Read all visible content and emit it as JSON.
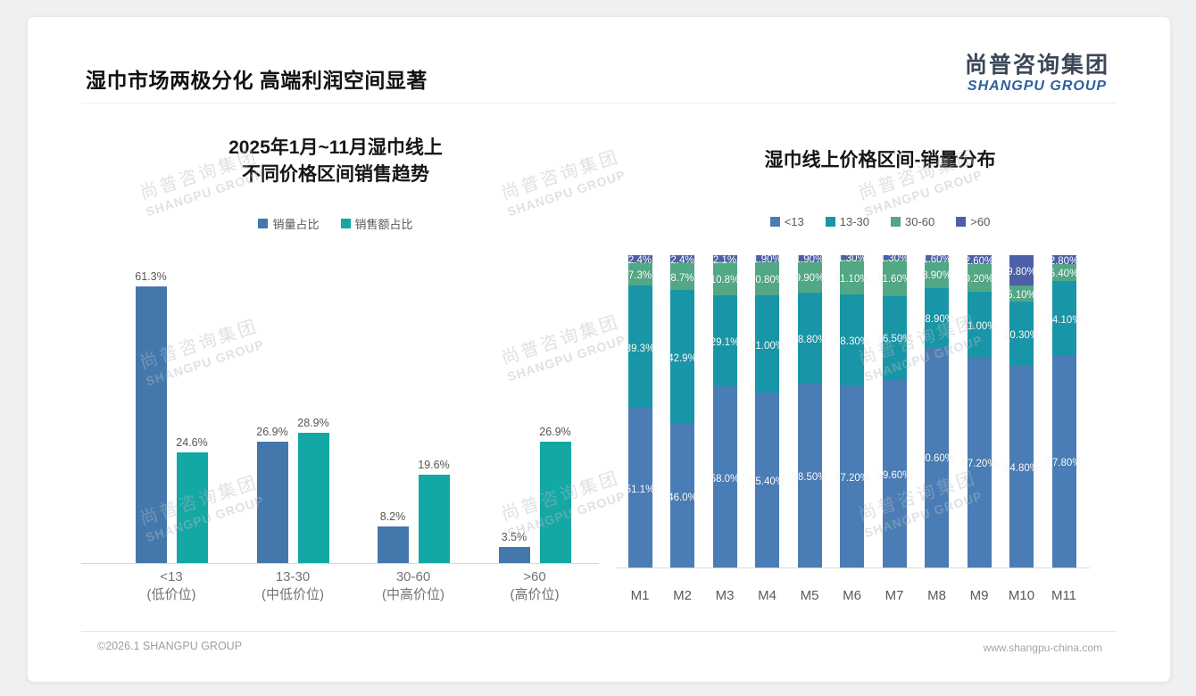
{
  "page": {
    "title": "湿巾市场两极分化 高端利润空间显著"
  },
  "logo": {
    "cn": "尚普咨询集团",
    "en": "SHANGPU GROUP"
  },
  "watermark": {
    "cn": "尚普咨询集团",
    "en": "SHANGPU GROUP"
  },
  "footer": {
    "left": "©2026.1 SHANGPU GROUP",
    "right": "www.shangpu-china.com"
  },
  "colors": {
    "sales_volume_blue": "#4478ad",
    "sales_value_teal": "#14a8a5",
    "stack_lt13_blue": "#4a7cb5",
    "stack_13_30_teal": "#1895a6",
    "stack_30_60_green": "#52a785",
    "stack_gt60_darkblue": "#4d5fa6",
    "axis_line": "#d5d8da",
    "label_gray": "#595959"
  },
  "chart_data": [
    {
      "type": "bar",
      "title": "2025年1月~11月湿巾线上 不同价格区间销售趋势",
      "title_lines": [
        "2025年1月~11月湿巾线上",
        "不同价格区间销售趋势"
      ],
      "categories": [
        "<13",
        "13-30",
        "30-60",
        ">60"
      ],
      "category_sublabels": [
        "(低价位)",
        "(中低价位)",
        "(中高价位)",
        "(高价位)"
      ],
      "series": [
        {
          "name": "销量占比",
          "color": "#4478ad",
          "values": [
            61.3,
            26.9,
            8.2,
            3.5
          ],
          "labels": [
            "61.3%",
            "26.9%",
            "8.2%",
            "3.5%"
          ]
        },
        {
          "name": "销售额占比",
          "color": "#14a8a5",
          "values": [
            24.6,
            28.9,
            19.6,
            26.9
          ],
          "labels": [
            "24.6%",
            "28.9%",
            "19.6%",
            "26.9%"
          ]
        }
      ],
      "ylim": [
        0,
        65
      ],
      "grid": false,
      "y_axis_visible": false,
      "value_labels": true,
      "legend_position": "top"
    },
    {
      "type": "stacked-bar",
      "title": "湿巾线上价格区间-销量分布",
      "categories": [
        "M1",
        "M2",
        "M3",
        "M4",
        "M5",
        "M6",
        "M7",
        "M8",
        "M9",
        "M10",
        "M11"
      ],
      "series": [
        {
          "name": "<13",
          "color": "#4a7cb5",
          "values": [
            51.1,
            46.0,
            58.0,
            55.4,
            58.5,
            57.2,
            59.6,
            70.6,
            67.2,
            64.8,
            67.8
          ],
          "labels": [
            "51.1%",
            "46.0%",
            "58.0%",
            "55.40%",
            "58.50%",
            "57.20%",
            "59.60%",
            "70.60%",
            "67.20%",
            "64.80%",
            "67.80%"
          ]
        },
        {
          "name": "13-30",
          "color": "#1895a6",
          "values": [
            39.3,
            42.9,
            29.1,
            31.0,
            28.8,
            28.3,
            26.5,
            18.9,
            21.0,
            20.3,
            24.1
          ],
          "labels": [
            "39.3%",
            "42.9%",
            "29.1%",
            "31.00%",
            "28.80%",
            "28.30%",
            "26.50%",
            "18.90%",
            "21.00%",
            "20.30%",
            "24.10%"
          ]
        },
        {
          "name": "30-60",
          "color": "#52a785",
          "values": [
            7.3,
            8.7,
            10.8,
            10.8,
            9.9,
            11.1,
            11.6,
            8.9,
            9.2,
            5.1,
            5.4
          ],
          "labels": [
            "7.3%",
            "8.7%",
            "10.8%",
            "10.80%",
            "9.90%",
            "11.10%",
            "11.60%",
            "8.90%",
            "9.20%",
            "5.10%",
            "5.40%"
          ]
        },
        {
          "name": ">60",
          "color": "#4d5fa6",
          "values": [
            2.4,
            2.4,
            2.1,
            1.9,
            1.9,
            1.3,
            1.3,
            1.6,
            2.6,
            9.8,
            2.8
          ],
          "labels": [
            "2.4%",
            "2.4%",
            "2.1%",
            "1.90%",
            "1.90%",
            "1.30%",
            "1.30%",
            "1.60%",
            "2.60%",
            "9.80%",
            "2.80%"
          ]
        }
      ],
      "ylim": [
        0,
        100
      ],
      "grid": false,
      "y_axis_visible": false,
      "value_labels": true,
      "legend_position": "top"
    }
  ]
}
